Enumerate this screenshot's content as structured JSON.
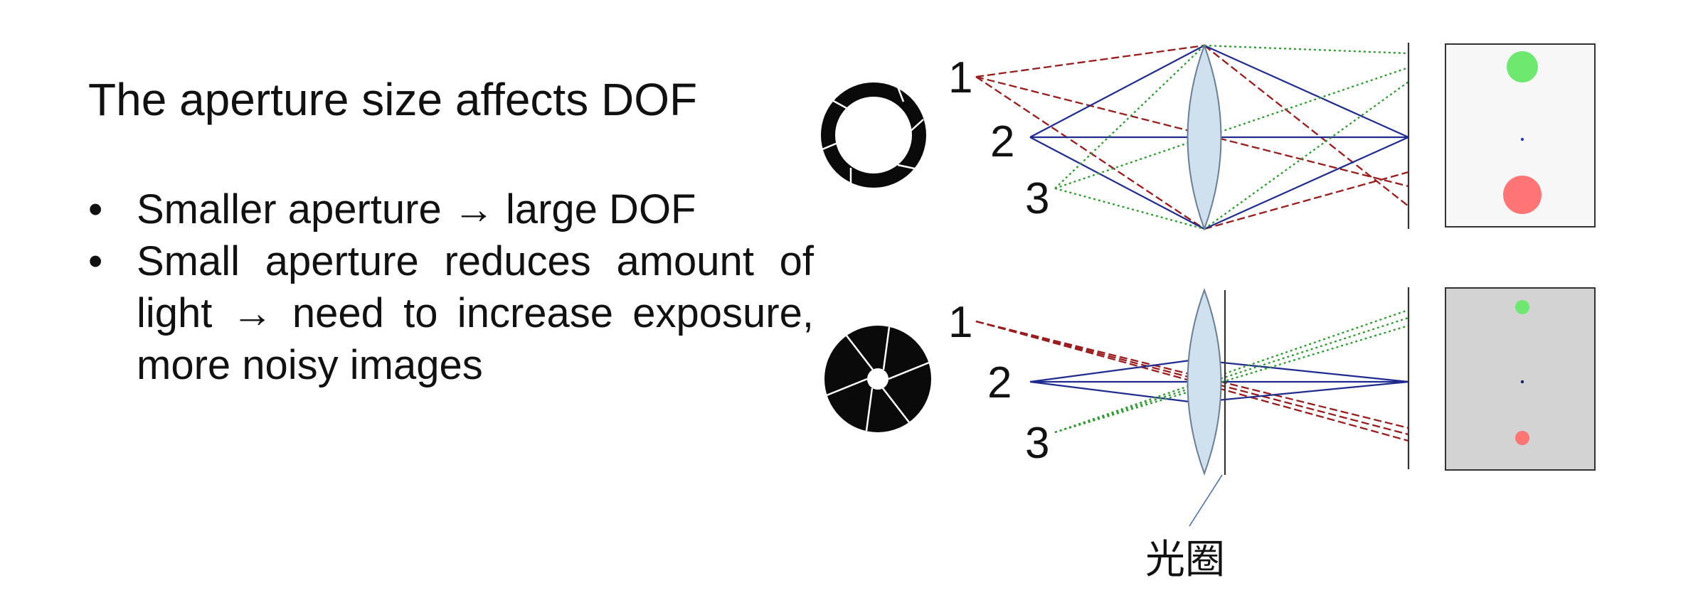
{
  "slide": {
    "title": "The aperture size affects DOF",
    "bullets": [
      {
        "marker": "•",
        "text": "Smaller aperture → large DOF"
      },
      {
        "marker": "•",
        "text": "Small aperture reduces amount of light → need to increase exposure, more noisy images"
      }
    ]
  },
  "diagram": {
    "point_labels": [
      "1",
      "2",
      "3"
    ],
    "aperture_caption": "光圈",
    "colors": {
      "ray_point1": "#9a1c1c",
      "ray_point2": "#1f2b8f",
      "ray_point3": "#2f9a2f",
      "lens_fill": "#cfe0ef",
      "lens_stroke": "#6a7f95",
      "sensor_bg_top": "#f7f7f7",
      "sensor_bg_bottom": "#d3d3d3",
      "blur_point1": "#6fe86f",
      "blur_point3": "#ff7474",
      "focus_point2": "#2a3fb0"
    },
    "diaphragm_icons": [
      {
        "opening": "wide",
        "blades": 6
      },
      {
        "opening": "narrow",
        "blades": 6
      }
    ]
  }
}
